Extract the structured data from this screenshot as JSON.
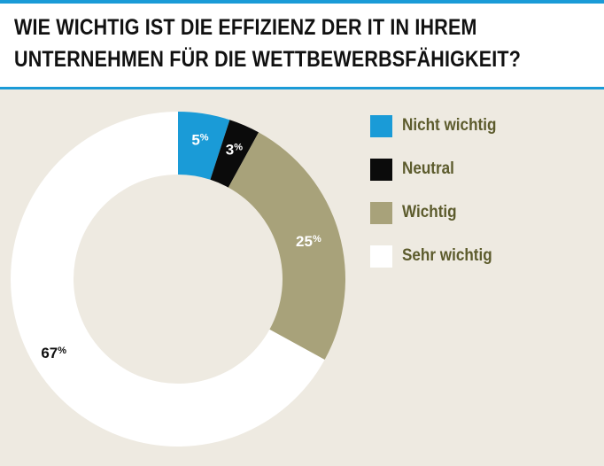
{
  "header": {
    "title_line1": "WIE WICHTIG IST DIE EFFIZIENZ DER IT IN IHREM",
    "title_line2": "UNTERNEHMEN FÜR DIE WETTBEWERBSFÄHIGKEIT?"
  },
  "colors": {
    "accent": "#1a9bd7",
    "label_text": "#5c5b2c"
  },
  "chart_data": {
    "type": "pie",
    "variant": "donut",
    "title": "WIE WICHTIG IST DIE EFFIZIENZ DER IT IN IHREM UNTERNEHMEN FÜR DIE WETTBEWERBSFÄHIGKEIT?",
    "categories": [
      "Nicht wichtig",
      "Neutral",
      "Wichtig",
      "Sehr wichtig"
    ],
    "values": [
      5,
      3,
      25,
      67
    ],
    "labels": [
      "5",
      "3",
      "25",
      "67"
    ],
    "unit": "%",
    "colors": [
      "#1a9bd7",
      "#0b0b0b",
      "#a8a27a",
      "#ffffff"
    ],
    "label_colors": [
      "#ffffff",
      "#ffffff",
      "#ffffff",
      "#111111"
    ],
    "legend_position": "right"
  }
}
